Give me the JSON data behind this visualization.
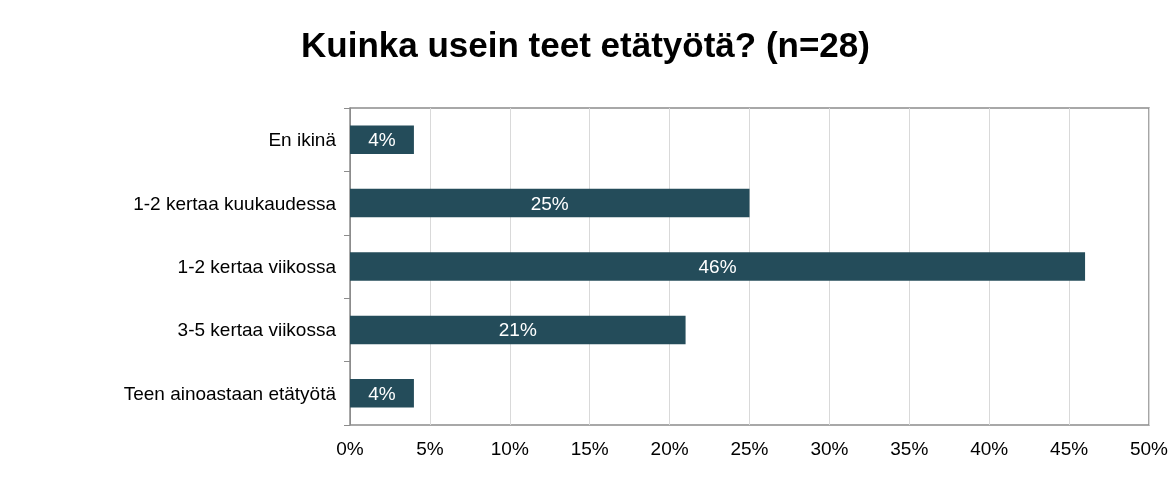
{
  "chart_data": {
    "type": "bar",
    "orientation": "horizontal",
    "title": "Kuinka usein teet etätyötä? (n=28)",
    "categories": [
      "En ikinä",
      "1-2 kertaa kuukaudessa",
      "1-2 kertaa viikossa",
      "3-5 kertaa viikossa",
      "Teen ainoastaan etätyötä"
    ],
    "values": [
      4,
      25,
      46,
      21,
      4
    ],
    "value_labels": [
      "4%",
      "25%",
      "46%",
      "21%",
      "4%"
    ],
    "color": "#244c5a",
    "xlim": [
      0,
      50
    ],
    "xticks": [
      {
        "value": 0,
        "label": "0%"
      },
      {
        "value": 5,
        "label": "5%"
      },
      {
        "value": 10,
        "label": "10%"
      },
      {
        "value": 15,
        "label": "15%"
      },
      {
        "value": 20,
        "label": "20%"
      },
      {
        "value": 25,
        "label": "25%"
      },
      {
        "value": 30,
        "label": "30%"
      },
      {
        "value": 35,
        "label": "35%"
      },
      {
        "value": 40,
        "label": "40%"
      },
      {
        "value": 45,
        "label": "45%"
      },
      {
        "value": 50,
        "label": "50%"
      }
    ],
    "grid": "x"
  }
}
